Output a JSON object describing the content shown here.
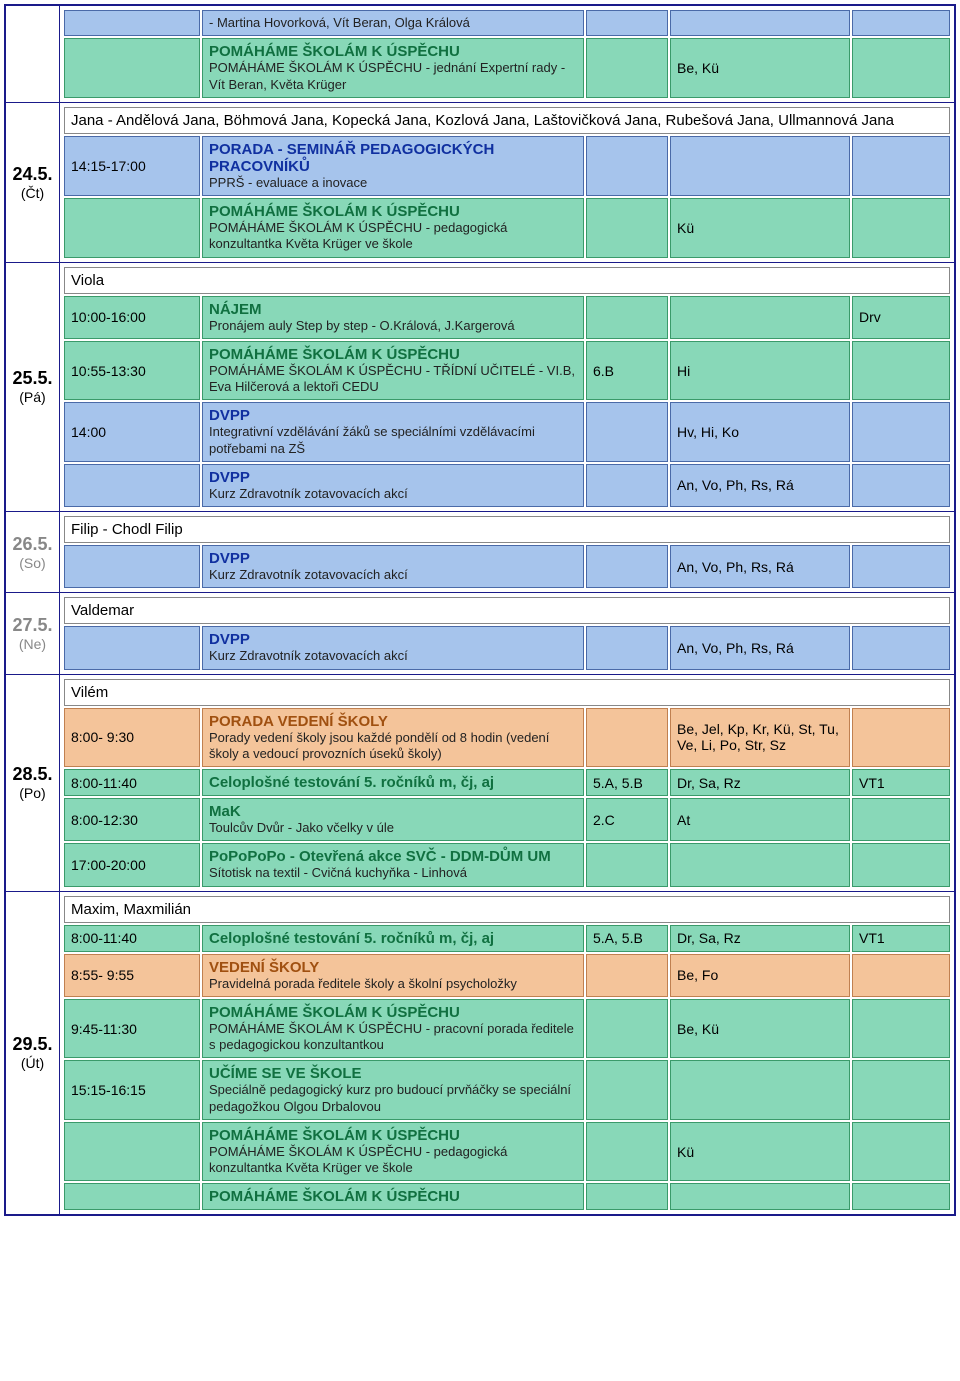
{
  "days": [
    {
      "date": "",
      "dow": "",
      "hide_date": true,
      "events": [
        {
          "color": "blue",
          "time": "",
          "title": "",
          "sub": "- Martina Hovorková, Vít Beran, Olga Králová",
          "cls": "",
          "who": "",
          "room": ""
        },
        {
          "color": "green",
          "time": "",
          "title": "POMÁHÁME ŠKOLÁM K ÚSPĚCHU",
          "sub": "POMÁHÁME ŠKOLÁM K ÚSPĚCHU - jednání Expertní rady - Vít Beran, Květa Krüger",
          "cls": "",
          "who": "Be, Kü",
          "room": ""
        }
      ]
    },
    {
      "date": "24.5.",
      "dow": "(Čt)",
      "names": "Jana - Andělová Jana, Böhmová Jana, Kopecká Jana, Kozlová Jana, Laštovičková Jana, Rubešová Jana, Ullmannová Jana",
      "events": [
        {
          "color": "blue",
          "time": "14:15-17:00",
          "title": "PORADA - SEMINÁŘ PEDAGOGICKÝCH PRACOVNÍKŮ",
          "sub": "PPRŠ - evaluace a inovace",
          "cls": "",
          "who": "",
          "room": ""
        },
        {
          "color": "green",
          "time": "",
          "title": "POMÁHÁME ŠKOLÁM K ÚSPĚCHU",
          "sub": "POMÁHÁME ŠKOLÁM K ÚSPĚCHU - pedagogická konzultantka Květa Krüger ve škole",
          "cls": "",
          "who": "Kü",
          "room": ""
        }
      ]
    },
    {
      "date": "25.5.",
      "dow": "(Pá)",
      "names": "Viola",
      "events": [
        {
          "color": "green",
          "time": "10:00-16:00",
          "title": "NÁJEM",
          "sub": "Pronájem auly Step by step - O.Králová, J.Kargerová",
          "cls": "",
          "who": "",
          "room": "Drv"
        },
        {
          "color": "green",
          "time": "10:55-13:30",
          "title": "POMÁHÁME ŠKOLÁM K ÚSPĚCHU",
          "sub": "POMÁHÁME ŠKOLÁM K ÚSPĚCHU - TŘÍDNÍ UČITELÉ - VI.B, Eva Hilčerová a lektoři CEDU",
          "cls": "6.B",
          "who": "Hi",
          "room": ""
        },
        {
          "color": "blue",
          "time": "14:00",
          "title": "DVPP",
          "sub": "Integrativní vzdělávání žáků se speciálními vzdělávacími potřebami na ZŠ",
          "cls": "",
          "who": "Hv, Hi, Ko",
          "room": ""
        },
        {
          "color": "blue",
          "time": "",
          "title": "DVPP",
          "sub": "Kurz Zdravotník zotavovacích akcí",
          "cls": "",
          "who": "An, Vo, Ph, Rs, Rá",
          "room": ""
        }
      ]
    },
    {
      "date": "26.5.",
      "dow": "(So)",
      "grey": true,
      "names": "Filip - Chodl Filip",
      "events": [
        {
          "color": "blue",
          "time": "",
          "title": "DVPP",
          "sub": "Kurz Zdravotník zotavovacích akcí",
          "cls": "",
          "who": "An, Vo, Ph, Rs, Rá",
          "room": ""
        }
      ]
    },
    {
      "date": "27.5.",
      "dow": "(Ne)",
      "grey": true,
      "names": "Valdemar",
      "events": [
        {
          "color": "blue",
          "time": "",
          "title": "DVPP",
          "sub": "Kurz Zdravotník zotavovacích akcí",
          "cls": "",
          "who": "An, Vo, Ph, Rs, Rá",
          "room": ""
        }
      ]
    },
    {
      "date": "28.5.",
      "dow": "(Po)",
      "names": "Vilém",
      "events": [
        {
          "color": "orange",
          "time": "8:00- 9:30",
          "title": "PORADA VEDENÍ ŠKOLY",
          "sub": "Porady vedení školy jsou každé pondělí od 8 hodin (vedení školy a vedoucí provozních úseků školy)",
          "cls": "",
          "who": "Be, Jel, Kp, Kr, Kü, St, Tu, Ve, Li, Po, Str, Sz",
          "room": ""
        },
        {
          "color": "green",
          "time": "8:00-11:40",
          "title": "Celoplošné testování 5. ročníků m, čj, aj",
          "sub": "",
          "cls": "5.A, 5.B",
          "who": "Dr, Sa, Rz",
          "room": "VT1"
        },
        {
          "color": "green",
          "time": "8:00-12:30",
          "title": "MaK",
          "sub": "Toulcův Dvůr - Jako včelky v úle",
          "cls": "2.C",
          "who": "At",
          "room": ""
        },
        {
          "color": "green",
          "time": "17:00-20:00",
          "title": "PoPoPoPo - Otevřená akce SVČ - DDM-DŮM UM",
          "sub": "Sítotisk na textil - Cvičná kuchyňka - Linhová",
          "cls": "",
          "who": "",
          "room": ""
        }
      ]
    },
    {
      "date": "29.5.",
      "dow": "(Út)",
      "names": "Maxim, Maxmilián",
      "events": [
        {
          "color": "green",
          "time": "8:00-11:40",
          "title": "Celoplošné testování 5. ročníků m, čj, aj",
          "sub": "",
          "cls": "5.A, 5.B",
          "who": "Dr, Sa, Rz",
          "room": "VT1"
        },
        {
          "color": "orange",
          "time": "8:55- 9:55",
          "title": "VEDENÍ ŠKOLY",
          "sub": "Pravidelná porada ředitele školy a školní psycholožky",
          "cls": "",
          "who": "Be, Fo",
          "room": ""
        },
        {
          "color": "green",
          "time": "9:45-11:30",
          "title": "POMÁHÁME ŠKOLÁM K ÚSPĚCHU",
          "sub": "POMÁHÁME ŠKOLÁM K ÚSPĚCHU - pracovní porada ředitele s pedagogickou konzultantkou",
          "cls": "",
          "who": "Be, Kü",
          "room": ""
        },
        {
          "color": "green",
          "time": "15:15-16:15",
          "title": "UČÍME SE VE ŠKOLE",
          "sub": "Speciálně pedagogický kurz pro budoucí prvňáčky se speciální pedagožkou Olgou Drbalovou",
          "cls": "",
          "who": "",
          "room": ""
        },
        {
          "color": "green",
          "time": "",
          "title": "POMÁHÁME ŠKOLÁM K ÚSPĚCHU",
          "sub": "POMÁHÁME ŠKOLÁM K ÚSPĚCHU - pedagogická konzultantka Květa Krüger ve škole",
          "cls": "",
          "who": "Kü",
          "room": ""
        },
        {
          "color": "green",
          "time": "",
          "title": "POMÁHÁME ŠKOLÁM K ÚSPĚCHU",
          "sub": "",
          "cls": "",
          "who": "",
          "room": ""
        }
      ]
    }
  ],
  "title_class_map": {
    "blue": "title-blue",
    "green": "title-green",
    "orange": "title-orange"
  }
}
